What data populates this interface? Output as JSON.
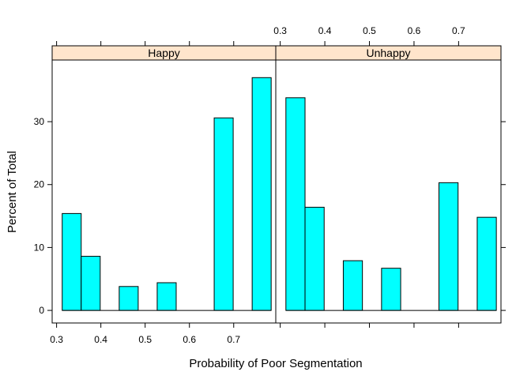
{
  "chart_data": {
    "type": "bar",
    "subtype": "lattice histogram",
    "xlabel": "Probability of Poor Segmentation",
    "ylabel": "Percent of Total",
    "xlim": [
      0.29,
      0.795
    ],
    "ylim": [
      -2,
      39.8
    ],
    "x_ticks": [
      "0.3",
      "0.4",
      "0.5",
      "0.6",
      "0.7"
    ],
    "y_ticks": [
      "0",
      "10",
      "20",
      "30"
    ],
    "bar_color": "#00ffff",
    "strip_color": "#ffe5cc",
    "bin_edges": [
      0.3127,
      0.3556,
      0.3985,
      0.4414,
      0.4843,
      0.5272,
      0.5701,
      0.613,
      0.6559,
      0.6988,
      0.7417,
      0.7846
    ],
    "panels": [
      {
        "name": "Happy",
        "values": [
          15.4,
          8.6,
          0.0,
          3.8,
          0.0,
          4.4,
          0.0,
          0.0,
          30.6,
          0.0,
          37.0
        ]
      },
      {
        "name": "Unhappy",
        "values": [
          33.8,
          16.4,
          0.0,
          7.9,
          0.0,
          6.7,
          0.0,
          0.0,
          20.3,
          0.0,
          14.8
        ]
      }
    ]
  }
}
